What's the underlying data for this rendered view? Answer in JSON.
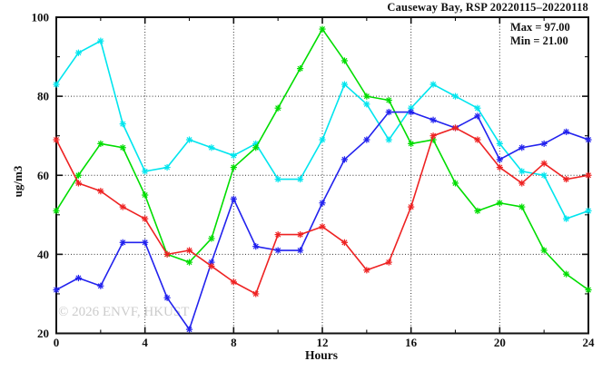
{
  "header": {
    "title": "Causeway Bay, RSP 20220115–20220118"
  },
  "annotation": {
    "max_label": "Max = 97.00",
    "min_label": "Min = 21.00"
  },
  "watermark": "© 2026 ENVF, HKUST",
  "axes": {
    "x": {
      "label": "Hours",
      "min": 0,
      "max": 24,
      "major_ticks": [
        0,
        4,
        8,
        12,
        16,
        20,
        24
      ],
      "minor_step": 2,
      "gridlines": [
        4,
        8,
        12,
        16,
        20
      ]
    },
    "y": {
      "label": "ug/m3",
      "min": 20,
      "max": 100,
      "major_ticks": [
        20,
        40,
        60,
        80,
        100
      ],
      "minor_step": 10,
      "gridlines": [
        40,
        60,
        80
      ]
    }
  },
  "chart_data": {
    "type": "line",
    "title": "Causeway Bay, RSP 20220115–20220118",
    "xlabel": "Hours",
    "ylabel": "ug/m3",
    "xlim": [
      0,
      24
    ],
    "ylim": [
      20,
      100
    ],
    "grid": true,
    "legend": "none",
    "marker": "asterisk",
    "annotations": [
      "Max = 97.00",
      "Min = 21.00"
    ],
    "x": [
      0,
      1,
      2,
      3,
      4,
      5,
      6,
      7,
      8,
      9,
      10,
      11,
      12,
      13,
      14,
      15,
      16,
      17,
      18,
      19,
      20,
      21,
      22,
      23,
      24
    ],
    "series": [
      {
        "name": "cyan-series",
        "color": "#00E5EE",
        "values": [
          83,
          91,
          94,
          73,
          61,
          62,
          69,
          67,
          65,
          68,
          59,
          59,
          69,
          83,
          78,
          69,
          77,
          83,
          80,
          77,
          68,
          61,
          60,
          49,
          51
        ]
      },
      {
        "name": "green-series",
        "color": "#00DD00",
        "values": [
          51,
          60,
          68,
          67,
          55,
          40,
          38,
          44,
          62,
          67,
          77,
          87,
          97,
          89,
          80,
          79,
          68,
          69,
          58,
          51,
          53,
          52,
          41,
          35,
          31
        ]
      },
      {
        "name": "blue-series",
        "color": "#2222EE",
        "values": [
          31,
          34,
          32,
          43,
          43,
          29,
          21,
          38,
          54,
          42,
          41,
          41,
          53,
          64,
          69,
          76,
          76,
          74,
          72,
          75,
          64,
          67,
          68,
          71,
          69
        ]
      },
      {
        "name": "red-series",
        "color": "#EE2222",
        "values": [
          69,
          58,
          56,
          52,
          49,
          40,
          41,
          37,
          33,
          30,
          45,
          45,
          47,
          43,
          36,
          38,
          52,
          70,
          72,
          69,
          62,
          58,
          63,
          59,
          60
        ]
      }
    ]
  }
}
